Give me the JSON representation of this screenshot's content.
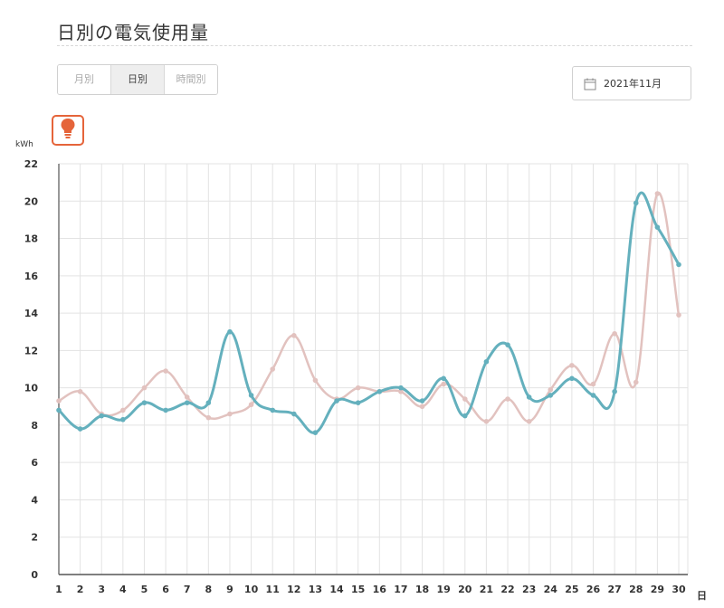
{
  "page": {
    "title": "日別の電気使用量"
  },
  "tabs": [
    {
      "label": "月別",
      "active": false
    },
    {
      "label": "日別",
      "active": true
    },
    {
      "label": "時間別",
      "active": false
    }
  ],
  "date_selector": {
    "label": "2021年11月",
    "icon": "calendar-icon"
  },
  "bulb_button": {
    "icon": "lightbulb-icon",
    "color": "#e5643a"
  },
  "chart_data": {
    "type": "line",
    "ylabel": "kWh",
    "xlabel": "日",
    "ylim": [
      0,
      22
    ],
    "yticks": [
      0,
      2,
      4,
      6,
      8,
      10,
      12,
      14,
      16,
      18,
      20,
      22
    ],
    "grid": true,
    "x": [
      1,
      2,
      3,
      4,
      5,
      6,
      7,
      8,
      9,
      10,
      11,
      12,
      13,
      14,
      15,
      16,
      17,
      18,
      19,
      20,
      21,
      22,
      23,
      24,
      25,
      26,
      27,
      28,
      29,
      30
    ],
    "series": [
      {
        "color": "#64b0bd",
        "values": [
          8.8,
          7.8,
          8.5,
          8.3,
          9.2,
          8.8,
          9.2,
          9.2,
          13.0,
          9.6,
          8.8,
          8.6,
          7.6,
          9.3,
          9.2,
          9.8,
          10.0,
          9.3,
          10.5,
          8.5,
          11.4,
          12.3,
          9.5,
          9.6,
          10.5,
          9.6,
          9.8,
          19.9,
          18.6,
          16.6
        ]
      },
      {
        "color": "#e2c2bf",
        "values": [
          9.3,
          9.8,
          8.6,
          8.8,
          10.0,
          10.9,
          9.5,
          8.4,
          8.6,
          9.1,
          11.0,
          12.8,
          10.4,
          9.4,
          10.0,
          9.8,
          9.8,
          9.0,
          10.2,
          9.4,
          8.2,
          9.4,
          8.2,
          9.9,
          11.2,
          10.2,
          12.9,
          10.3,
          20.4,
          13.9
        ]
      }
    ]
  }
}
